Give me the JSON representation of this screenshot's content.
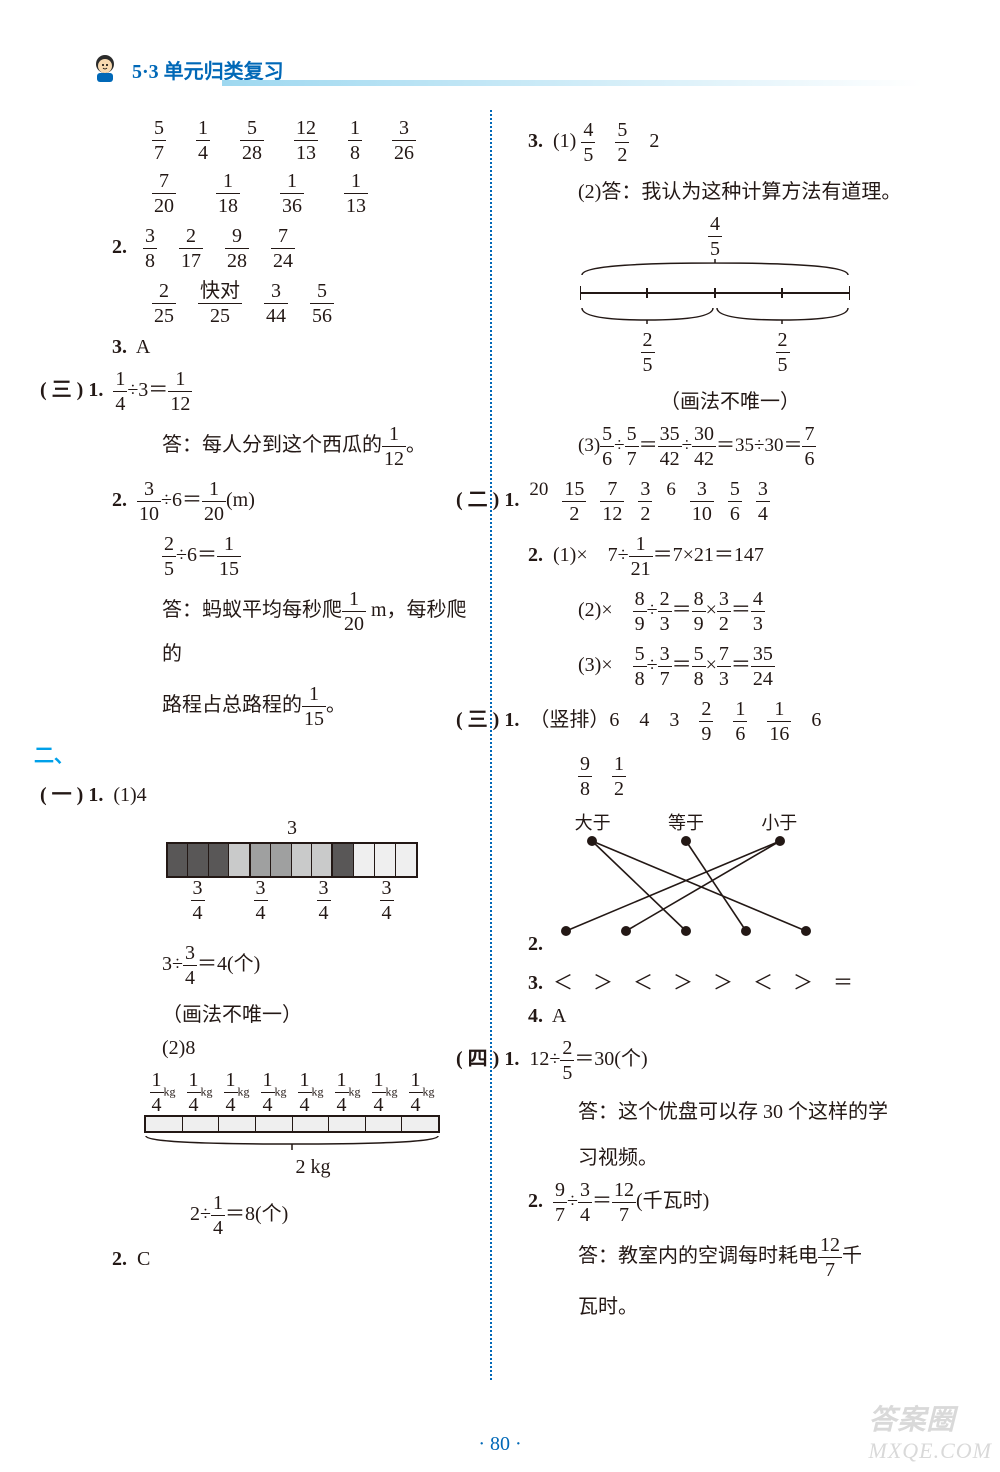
{
  "header": {
    "title": "5·3 单元归类复习"
  },
  "page_number": "· 80 ·",
  "watermark_line1": "答案圈",
  "watermark_line2": "MXQE.COM",
  "left": {
    "row1": [
      "5/7",
      "1/4",
      "5/28",
      "12/13",
      "1/8",
      "3/26"
    ],
    "row2": [
      "7/20",
      "1/18",
      "1/36",
      "1/13"
    ],
    "q2a": "2.",
    "q2a_vals": [
      "3/8",
      "2/17",
      "9/28",
      "7/24"
    ],
    "row4": [
      "2/25",
      "快对/25",
      "3/44",
      "5/56"
    ],
    "q3": "3.",
    "q3_val": "A",
    "san": "( 三 )",
    "san_q1": "1.",
    "san_q1_eq_l": "1/4",
    "san_q1_op": "÷3＝",
    "san_q1_r": "1/12",
    "san_q1_ans_pre": "答：每人分到这个西瓜的",
    "san_q1_ans_frac": "1/12",
    "san_q1_ans_post": "。",
    "san_q2": "2.",
    "san_q2_eq1_l": "3/10",
    "san_q2_eq1_m": "÷6＝",
    "san_q2_eq1_r": "1/20",
    "san_q2_eq1_u": "(m)",
    "san_q2_eq2_l": "2/5",
    "san_q2_eq2_m": "÷6＝",
    "san_q2_eq2_r": "1/15",
    "san_q2_ans1_pre": "答：蚂蚁平均每秒爬",
    "san_q2_ans1_frac": "1/20",
    "san_q2_ans1_post": " m，每秒爬的",
    "san_q2_ans2_pre": "路程占总路程的",
    "san_q2_ans2_frac": "1/15",
    "san_q2_ans2_post": "。",
    "er": "二、",
    "yi": "( 一 )",
    "yi_q1": "1.",
    "yi_q1_1": "(1)4",
    "bar_top": "3",
    "bar_bot": "3/4",
    "yi_eq1_l": "3÷",
    "yi_eq1_f": "3/4",
    "yi_eq1_r": "＝4(个)",
    "hua": "（画法不唯一）",
    "yi_q1_2": "(2)8",
    "kg_cell": "1/4",
    "kg_unit": "kg",
    "kg_total": "2 kg",
    "yi_eq2_l": "2÷",
    "yi_eq2_f": "1/4",
    "yi_eq2_r": "＝8(个)",
    "yi_q2": "2.",
    "yi_q2_val": "C"
  },
  "right": {
    "q3": "3.",
    "q3_1a": "(1)",
    "q3_1_f1": "4/5",
    "q3_1_f2": "5/2",
    "q3_1_v": "2",
    "q3_2": "(2)答：我认为这种计算方法有道理。",
    "br_top": "4/5",
    "br_bot": "2/5",
    "hua": "（画法不唯一）",
    "q3_3": "(3)",
    "q3_3_f1": "5/6",
    "q3_3_f2": "5/7",
    "q3_3_f3": "35/42",
    "q3_3_f4": "30/42",
    "q3_3_mid": "＝35÷30＝",
    "q3_3_f5": "7/6",
    "er": "( 二 )",
    "er_q1": "1.",
    "er_q1_vals": [
      "20",
      "15/2",
      "7/12",
      "3/2",
      "6",
      "3/10",
      "5/6",
      "3/4"
    ],
    "er_q2": "2.",
    "er_q2_1": "(1)×",
    "er_q2_1_eq_l": "7÷",
    "er_q2_1_f": "1/21",
    "er_q2_1_eq_r": "＝7×21＝147",
    "er_q2_2": "(2)×",
    "er_q2_2_f1": "8/9",
    "er_q2_2_f2": "2/3",
    "er_q2_2_f3": "8/9",
    "er_q2_2_f4": "3/2",
    "er_q2_2_f5": "4/3",
    "er_q2_3": "(3)×",
    "er_q2_3_f1": "5/8",
    "er_q2_3_f2": "3/7",
    "er_q2_3_f3": "5/8",
    "er_q2_3_f4": "7/3",
    "er_q2_3_f5": "35/24",
    "san": "( 三 )",
    "san_q1": "1.",
    "san_q1_pre": "（竖排）6　4　3",
    "san_q1_f": [
      "2/9",
      "1/6",
      "1/16"
    ],
    "san_q1_post": "6",
    "san_q1_row2": [
      "9/8",
      "1/2"
    ],
    "match_top": [
      "大于",
      "等于",
      "小于"
    ],
    "san_q2": "2.",
    "san_q3": "3.",
    "san_q3_vals": "＜　＞　＜　＞　＞　＜　＞　＝",
    "san_q4": "4.",
    "san_q4_val": "A",
    "si": "( 四 )",
    "si_q1": "1.",
    "si_q1_l": "12÷",
    "si_q1_f": "2/5",
    "si_q1_r": "＝30(个)",
    "si_q1_ans1": "答：这个优盘可以存 30 个这样的学",
    "si_q1_ans2": "习视频。",
    "si_q2": "2.",
    "si_q2_f1": "9/7",
    "si_q2_f2": "3/4",
    "si_q2_f3": "12/7",
    "si_q2_u": "(千瓦时)",
    "si_q2_ans_pre": "答：教室内的空调每时耗电",
    "si_q2_ans_f": "12/7",
    "si_q2_ans_post": "千",
    "si_q2_ans2": "瓦时。"
  }
}
